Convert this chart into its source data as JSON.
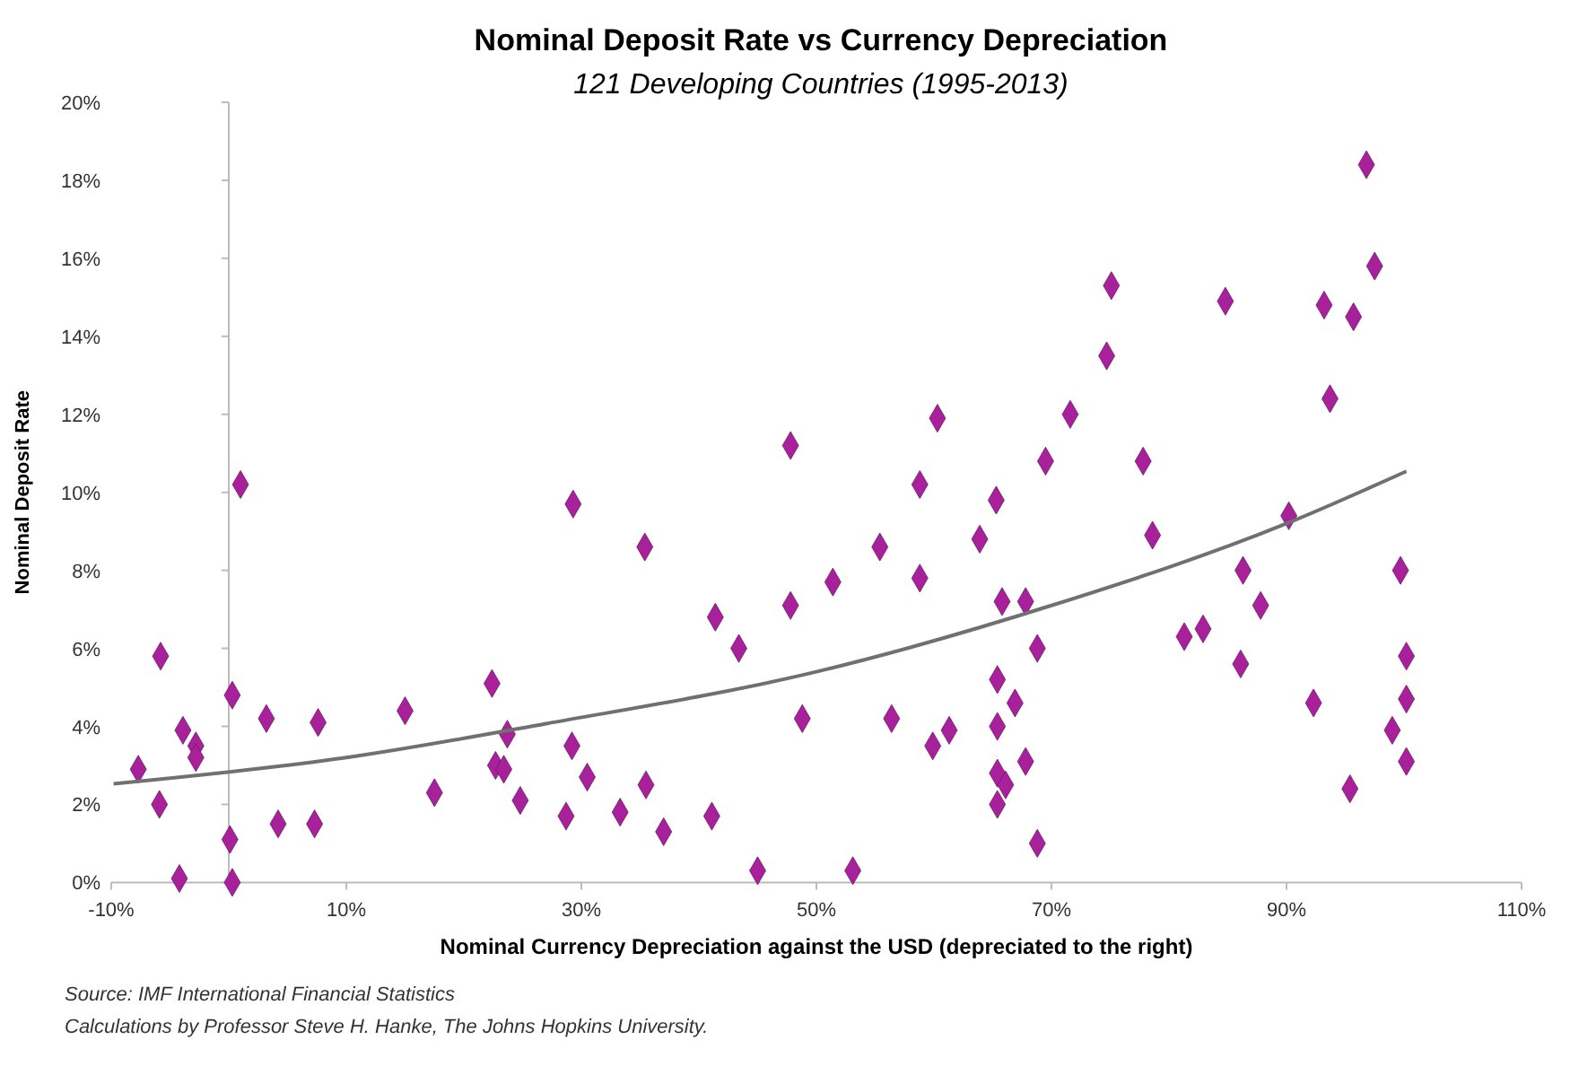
{
  "chart_data": {
    "type": "scatter",
    "title": "Nominal Deposit Rate vs Currency Depreciation",
    "subtitle": "121 Developing Countries (1995-2013)",
    "xlabel": "Nominal Currency Depreciation against the USD (depreciated to the right)",
    "ylabel": "Nominal Deposit Rate",
    "annotations": [
      "Source: IMF International Financial Statistics",
      "Calculations by Professor Steve H. Hanke, The Johns Hopkins University."
    ],
    "xlim": [
      -10,
      110
    ],
    "ylim": [
      0,
      20
    ],
    "xticks": [
      {
        "value": -10,
        "label": "-10%"
      },
      {
        "value": 10,
        "label": "10%"
      },
      {
        "value": 30,
        "label": "30%"
      },
      {
        "value": 50,
        "label": "50%"
      },
      {
        "value": 70,
        "label": "70%"
      },
      {
        "value": 90,
        "label": "90%"
      },
      {
        "value": 110,
        "label": "110%"
      }
    ],
    "yticks": [
      {
        "value": 0,
        "label": "0%"
      },
      {
        "value": 2,
        "label": "2%"
      },
      {
        "value": 4,
        "label": "4%"
      },
      {
        "value": 6,
        "label": "6%"
      },
      {
        "value": 8,
        "label": "8%"
      },
      {
        "value": 10,
        "label": "10%"
      },
      {
        "value": 12,
        "label": "12%"
      },
      {
        "value": 14,
        "label": "14%"
      },
      {
        "value": 16,
        "label": "16%"
      },
      {
        "value": 18,
        "label": "18%"
      },
      {
        "value": 20,
        "label": "20%"
      }
    ],
    "grid": false,
    "marker": "diamond",
    "series": [
      {
        "type": "scatter",
        "color": "#a8209a",
        "x": [
          -7.7,
          -5.8,
          -5.9,
          -3.9,
          -2.8,
          -2.8,
          -4.2,
          0.3,
          1.0,
          0.1,
          0.3,
          3.2,
          7.6,
          4.2,
          7.3,
          15.0,
          17.5,
          22.4,
          23.7,
          22.7,
          23.4,
          24.8,
          29.3,
          29.2,
          28.7,
          30.5,
          33.3,
          35.4,
          35.5,
          37.0,
          41.1,
          41.4,
          43.4,
          45.0,
          47.8,
          47.8,
          48.8,
          51.4,
          53.1,
          55.4,
          56.4,
          58.8,
          60.3,
          58.8,
          59.9,
          61.3,
          63.9,
          65.3,
          65.8,
          67.8,
          68.8,
          69.5,
          65.4,
          66.9,
          65.4,
          65.4,
          66.1,
          65.4,
          67.8,
          68.8,
          71.6,
          74.7,
          75.1,
          77.8,
          78.6,
          81.3,
          82.9,
          84.8,
          86.3,
          87.8,
          86.1,
          90.2,
          92.3,
          93.2,
          93.7,
          95.7,
          95.4,
          96.8,
          97.5,
          99.7,
          100.2,
          100.2,
          99.0,
          100.2
        ],
        "values": [
          2.9,
          5.8,
          2.0,
          3.9,
          3.5,
          3.2,
          0.1,
          4.8,
          10.2,
          1.1,
          0.0,
          4.2,
          4.1,
          1.5,
          1.5,
          4.4,
          2.3,
          5.1,
          3.8,
          3.0,
          2.9,
          2.1,
          9.7,
          3.5,
          1.7,
          2.7,
          1.8,
          8.6,
          2.5,
          1.3,
          1.7,
          6.8,
          6.0,
          0.3,
          11.2,
          7.1,
          4.2,
          7.7,
          0.3,
          8.6,
          4.2,
          10.2,
          11.9,
          7.8,
          3.5,
          3.9,
          8.8,
          9.8,
          7.2,
          7.2,
          6.0,
          10.8,
          5.2,
          4.6,
          4.0,
          2.8,
          2.5,
          2.0,
          3.1,
          1.0,
          12.0,
          13.5,
          15.3,
          10.8,
          8.9,
          6.3,
          6.5,
          14.9,
          8.0,
          7.1,
          5.6,
          9.4,
          4.6,
          14.8,
          12.4,
          14.5,
          2.4,
          18.4,
          15.8,
          8.0,
          5.8,
          4.7,
          3.9,
          3.1
        ]
      },
      {
        "type": "line",
        "color": "#707070",
        "marker": "none",
        "x": [
          -9.8,
          10,
          27,
          50,
          70,
          90,
          100.2
        ],
        "values": [
          2.53,
          3.2,
          4.07,
          5.4,
          7.1,
          9.2,
          10.54
        ]
      }
    ]
  }
}
